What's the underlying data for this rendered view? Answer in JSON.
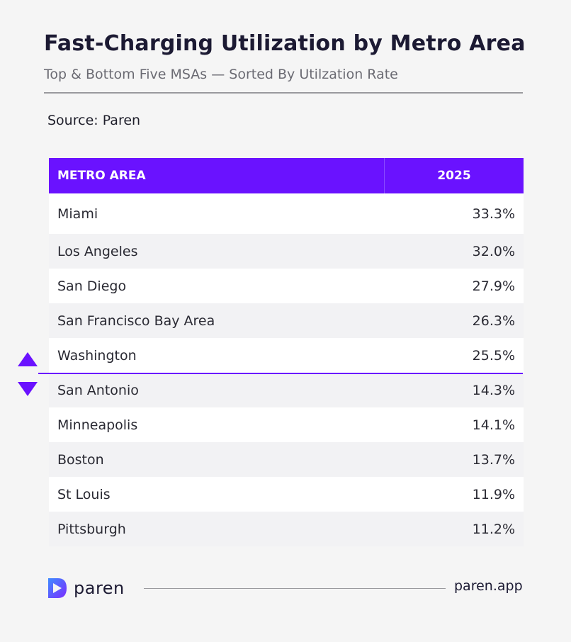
{
  "header": {
    "title": "Fast-Charging Utilization by Metro Area",
    "subtitle": "Top & Bottom Five MSAs — Sorted By Utilzation Rate",
    "source": "Source: Paren"
  },
  "footer": {
    "brand": "paren",
    "url": "paren.app"
  },
  "colors": {
    "accent": "#6a12ff",
    "background": "#f5f5f5",
    "text": "#1c1a33"
  },
  "chart_data": {
    "type": "table",
    "title": "Fast-Charging Utilization by Metro Area",
    "subtitle": "Top & Bottom Five MSAs — Sorted By Utilzation Rate",
    "columns": [
      "METRO AREA",
      "2025"
    ],
    "rows": [
      {
        "metro": "Miami",
        "value": "33.3%"
      },
      {
        "metro": "Los Angeles",
        "value": "32.0%"
      },
      {
        "metro": "San Diego",
        "value": "27.9%"
      },
      {
        "metro": "San Francisco Bay Area",
        "value": "26.3%"
      },
      {
        "metro": "Washington",
        "value": "25.5%"
      },
      {
        "metro": "San Antonio",
        "value": "14.3%"
      },
      {
        "metro": "Minneapolis",
        "value": "14.1%"
      },
      {
        "metro": "Boston",
        "value": "13.7%"
      },
      {
        "metro": "St Louis",
        "value": "11.9%"
      },
      {
        "metro": "Pittsburgh",
        "value": "11.2%"
      }
    ],
    "groups": {
      "top_five_count": 5,
      "bottom_five_count": 5
    }
  }
}
